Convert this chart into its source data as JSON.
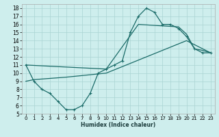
{
  "xlabel": "Humidex (Indice chaleur)",
  "bg_color": "#ceeeed",
  "grid_color": "#aad4d2",
  "line_color": "#1a6b68",
  "xlim": [
    -0.5,
    23.5
  ],
  "ylim": [
    5,
    18.5
  ],
  "xticks": [
    0,
    1,
    2,
    3,
    4,
    5,
    6,
    7,
    8,
    9,
    10,
    11,
    12,
    13,
    14,
    15,
    16,
    17,
    18,
    19,
    20,
    21,
    22,
    23
  ],
  "yticks": [
    5,
    6,
    7,
    8,
    9,
    10,
    11,
    12,
    13,
    14,
    15,
    16,
    17,
    18
  ],
  "line1_x": [
    0,
    1,
    2,
    3,
    4,
    5,
    6,
    7,
    8,
    9,
    10,
    11,
    12,
    13,
    14,
    15,
    16,
    17,
    18,
    19,
    20,
    21,
    22,
    23
  ],
  "line1_y": [
    11.0,
    9.0,
    8.0,
    7.5,
    6.5,
    5.5,
    5.5,
    6.0,
    7.5,
    10.0,
    10.5,
    11.0,
    11.5,
    15.0,
    17.0,
    18.0,
    17.5,
    16.0,
    16.0,
    15.5,
    14.5,
    13.0,
    12.5,
    12.5
  ],
  "line2_x": [
    0,
    10,
    14,
    19,
    20,
    21,
    22,
    23
  ],
  "line2_y": [
    11.0,
    10.5,
    16.0,
    15.7,
    14.8,
    13.0,
    12.8,
    12.5
  ],
  "line3_x": [
    0,
    1,
    5,
    10,
    15,
    20,
    23
  ],
  "line3_y": [
    9.0,
    9.2,
    9.5,
    10.0,
    12.0,
    14.0,
    12.5
  ]
}
